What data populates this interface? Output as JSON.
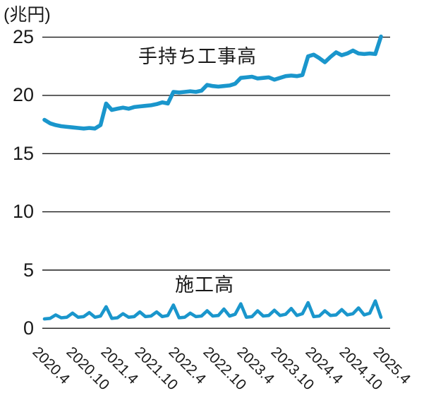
{
  "chart_data": {
    "type": "line",
    "title": "",
    "unit_label": "(兆円)",
    "grid": "horizontal-only",
    "legend_position": "inline-annotations",
    "y_axis": {
      "ticks": [
        "25",
        "20",
        "15",
        "10",
        "5",
        "0"
      ],
      "tick_values": [
        25,
        20,
        15,
        10,
        5,
        0
      ],
      "min": 0,
      "max": 25.6
    },
    "x_axis": {
      "tick_labels": [
        "2020.4",
        "2020.10",
        "2021.4",
        "2021.10",
        "2022.4",
        "2022.10",
        "2023.4",
        "2023.10",
        "2024.4",
        "2024.10",
        "2025.4"
      ],
      "rotation_deg": 45,
      "frequency": "monthly",
      "start": "2020.4",
      "end": "2025.4",
      "n_points": 61
    },
    "series": [
      {
        "name": "手持ち工事高",
        "color": "#1a96cc",
        "values": [
          17.9,
          17.6,
          17.45,
          17.35,
          17.3,
          17.25,
          17.2,
          17.15,
          17.2,
          17.15,
          17.45,
          19.3,
          18.75,
          18.85,
          18.95,
          18.85,
          19.0,
          19.05,
          19.1,
          19.15,
          19.25,
          19.4,
          19.3,
          20.3,
          20.25,
          20.3,
          20.35,
          20.3,
          20.4,
          20.9,
          20.8,
          20.75,
          20.8,
          20.85,
          21.0,
          21.5,
          21.55,
          21.6,
          21.45,
          21.5,
          21.55,
          21.35,
          21.5,
          21.65,
          21.7,
          21.65,
          21.75,
          23.35,
          23.5,
          23.2,
          22.85,
          23.3,
          23.7,
          23.45,
          23.6,
          23.85,
          23.6,
          23.55,
          23.6,
          23.55,
          25.05
        ]
      },
      {
        "name": "施工高",
        "color": "#1a96cc",
        "values": [
          0.8,
          0.85,
          1.15,
          0.9,
          0.95,
          1.3,
          0.95,
          1.0,
          1.35,
          0.95,
          1.05,
          1.85,
          0.85,
          0.9,
          1.25,
          0.95,
          1.0,
          1.4,
          1.0,
          1.05,
          1.4,
          1.0,
          1.1,
          2.0,
          0.9,
          0.95,
          1.3,
          1.0,
          1.05,
          1.5,
          1.05,
          1.1,
          1.65,
          1.05,
          1.2,
          2.1,
          0.95,
          1.0,
          1.5,
          1.05,
          1.1,
          1.55,
          1.1,
          1.2,
          1.7,
          1.1,
          1.25,
          2.2,
          1.0,
          1.05,
          1.5,
          1.1,
          1.15,
          1.6,
          1.15,
          1.25,
          1.75,
          1.15,
          1.3,
          2.35,
          0.95
        ]
      }
    ]
  },
  "colors": {
    "line_blue": "#1a96cc",
    "text": "#1a1a1a",
    "gridline": "#1a1a1a",
    "background": "#ffffff"
  }
}
